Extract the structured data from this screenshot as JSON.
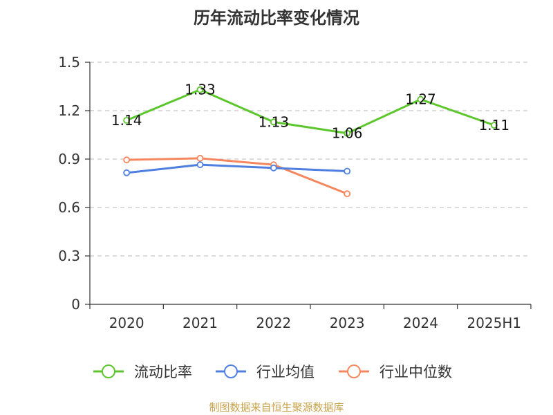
{
  "chart_data": {
    "type": "line",
    "title": "历年流动比率变化情况",
    "categories": [
      "2020",
      "2021",
      "2022",
      "2023",
      "2024",
      "2025H1"
    ],
    "y_ticks": [
      "0",
      "0.3",
      "0.6",
      "0.9",
      "1.2",
      "1.5"
    ],
    "ylim": [
      0,
      1.5
    ],
    "grid": true,
    "legend_position": "bottom",
    "series": [
      {
        "name": "流动比率",
        "color": "#5cc72c",
        "values": [
          1.14,
          1.33,
          1.13,
          1.06,
          1.27,
          1.11
        ],
        "labels": [
          "1.14",
          "1.33",
          "1.13",
          "1.06",
          "1.27",
          "1.11"
        ]
      },
      {
        "name": "行业均值",
        "color": "#4f80e1",
        "values": [
          0.815,
          0.865,
          0.845,
          0.825,
          null,
          null
        ]
      },
      {
        "name": "行业中位数",
        "color": "#f5875e",
        "values": [
          0.895,
          0.905,
          0.865,
          0.685,
          null,
          null
        ]
      }
    ]
  },
  "source": "制图数据来自恒生聚源数据库"
}
